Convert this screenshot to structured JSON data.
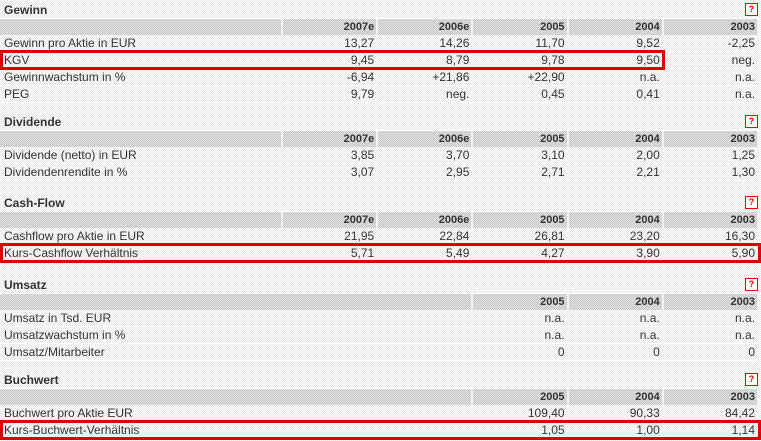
{
  "sections": [
    {
      "title": "Gewinn",
      "columns": [
        "2007e",
        "2006e",
        "2005",
        "2004",
        "2003"
      ],
      "rows": [
        {
          "label": "Gewinn pro Aktie in EUR",
          "values": [
            "13,27",
            "14,26",
            "11,70",
            "9,52",
            "-2,25"
          ]
        },
        {
          "label": "KGV",
          "values": [
            "9,45",
            "8,79",
            "9,78",
            "9,50",
            "neg."
          ],
          "highlight": "partial"
        },
        {
          "label": "Gewinnwachstum in %",
          "values": [
            "-6,94",
            "+21,86",
            "+22,90",
            "n.a.",
            "n.a."
          ]
        },
        {
          "label": "PEG",
          "values": [
            "9,79",
            "neg.",
            "0,45",
            "0,41",
            "n.a."
          ]
        }
      ]
    },
    {
      "title": "Dividende",
      "columns": [
        "2007e",
        "2006e",
        "2005",
        "2004",
        "2003"
      ],
      "rows": [
        {
          "label": "Dividende (netto) in EUR",
          "values": [
            "3,85",
            "3,70",
            "3,10",
            "2,00",
            "1,25"
          ]
        },
        {
          "label": "Dividendenrendite in %",
          "values": [
            "3,07",
            "2,95",
            "2,71",
            "2,21",
            "1,30"
          ]
        }
      ]
    },
    {
      "title": "Cash-Flow",
      "columns": [
        "2007e",
        "2006e",
        "2005",
        "2004",
        "2003"
      ],
      "rows": [
        {
          "label": "Cashflow pro Aktie in EUR",
          "values": [
            "21,95",
            "22,84",
            "26,81",
            "23,20",
            "16,30"
          ]
        },
        {
          "label": "Kurs-Cashflow Verhältnis",
          "values": [
            "5,71",
            "5,49",
            "4,27",
            "3,90",
            "5,90"
          ],
          "highlight": "full"
        }
      ]
    },
    {
      "title": "Umsatz",
      "columns": [
        "2005",
        "2004",
        "2003"
      ],
      "rows": [
        {
          "label": "Umsatz in Tsd. EUR",
          "values": [
            "n.a.",
            "n.a.",
            "n.a."
          ]
        },
        {
          "label": "Umsatzwachstum in %",
          "values": [
            "n.a.",
            "n.a.",
            "n.a."
          ]
        },
        {
          "label": "Umsatz/Mitarbeiter",
          "values": [
            "0",
            "0",
            "0"
          ]
        }
      ]
    },
    {
      "title": "Buchwert",
      "columns": [
        "2005",
        "2004",
        "2003"
      ],
      "rows": [
        {
          "label": "Buchwert pro Aktie EUR",
          "values": [
            "109,40",
            "90,33",
            "84,42"
          ]
        },
        {
          "label": "Kurs-Buchwert-Verhältnis",
          "values": [
            "1,05",
            "1,00",
            "1,14"
          ],
          "highlight": "full"
        }
      ]
    }
  ],
  "help_label": "?",
  "highlight_color": "#e00000"
}
